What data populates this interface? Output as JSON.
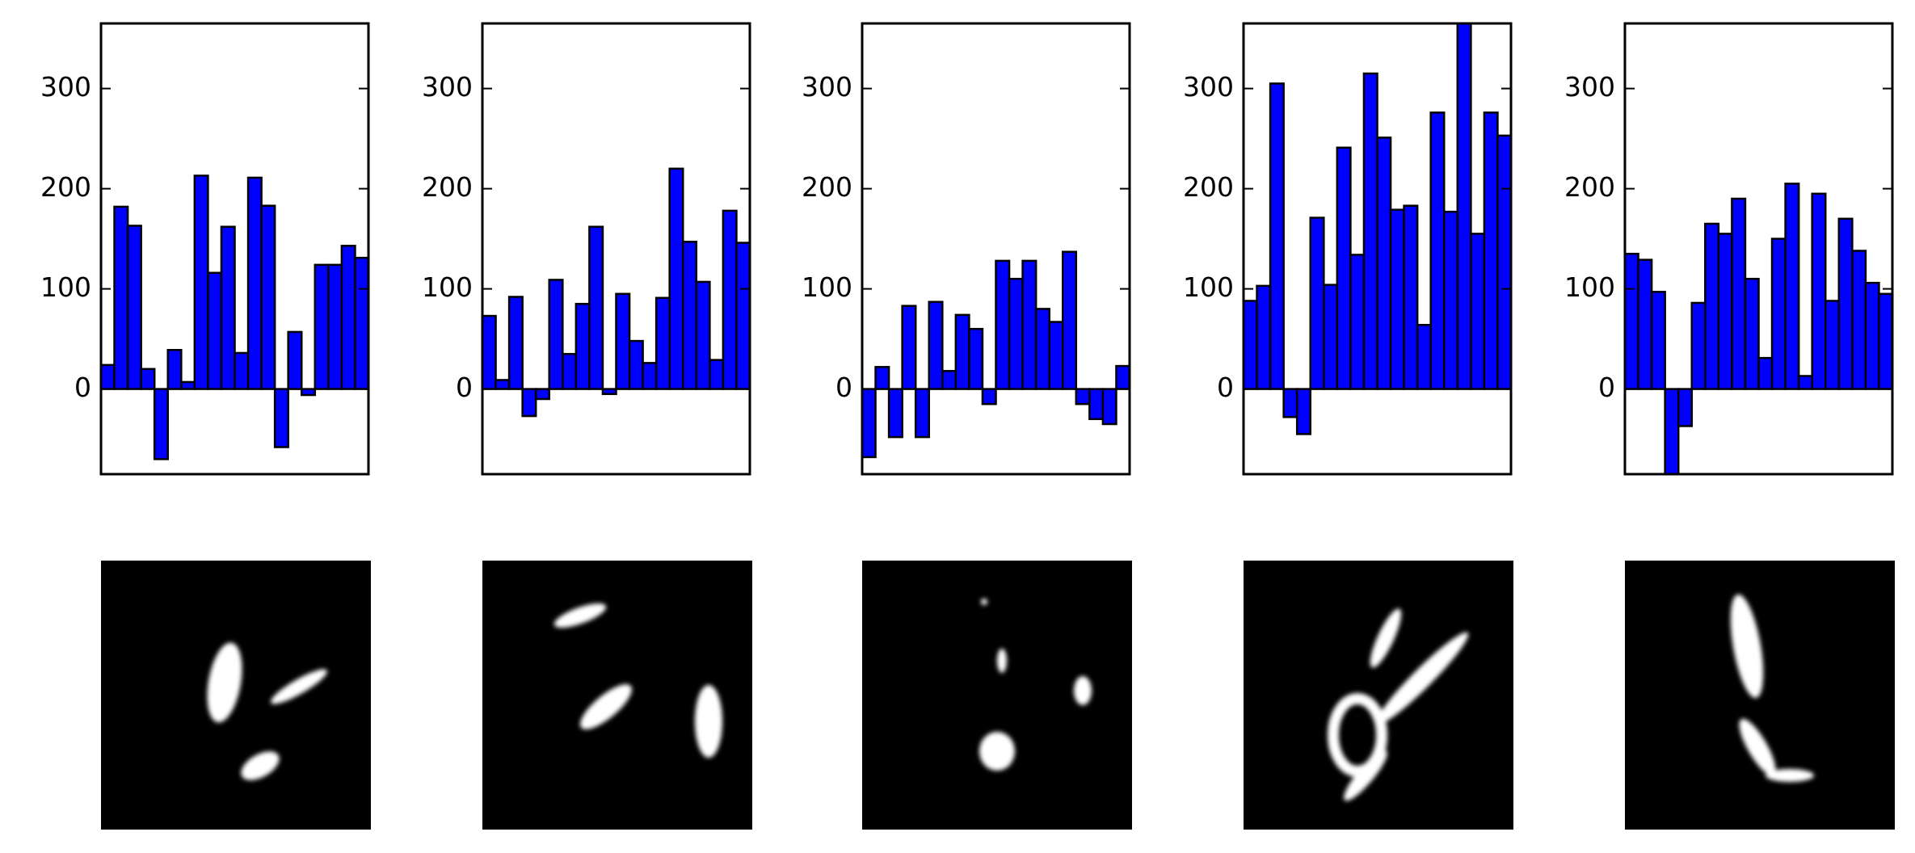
{
  "chart_data": [
    {
      "type": "bar",
      "color": "#0000ff",
      "ylim": [
        -85,
        365
      ],
      "yticks": [
        0,
        100,
        200,
        300
      ],
      "values": [
        24,
        182,
        163,
        20,
        -70,
        39,
        7,
        213,
        116,
        162,
        36,
        211,
        183,
        -58,
        57,
        -6,
        124,
        124,
        143,
        131
      ]
    },
    {
      "type": "bar",
      "color": "#0000ff",
      "ylim": [
        -85,
        365
      ],
      "yticks": [
        0,
        100,
        200,
        300
      ],
      "values": [
        73,
        9,
        92,
        -27,
        -10,
        109,
        35,
        85,
        162,
        -5,
        95,
        48,
        26,
        91,
        220,
        147,
        107,
        29,
        178,
        146
      ]
    },
    {
      "type": "bar",
      "color": "#0000ff",
      "ylim": [
        -85,
        365
      ],
      "yticks": [
        0,
        100,
        200,
        300
      ],
      "values": [
        -68,
        22,
        -48,
        83,
        -48,
        87,
        18,
        74,
        60,
        -15,
        128,
        110,
        128,
        80,
        67,
        137,
        -15,
        -30,
        -35,
        23
      ]
    },
    {
      "type": "bar",
      "color": "#0000ff",
      "ylim": [
        -85,
        365
      ],
      "yticks": [
        0,
        100,
        200,
        300
      ],
      "values": [
        88,
        103,
        305,
        -28,
        -45,
        171,
        104,
        241,
        134,
        315,
        251,
        179,
        183,
        64,
        276,
        177,
        365,
        155,
        276,
        253
      ]
    },
    {
      "type": "bar",
      "color": "#0000ff",
      "ylim": [
        -85,
        365
      ],
      "yticks": [
        0,
        100,
        200,
        300
      ],
      "values": [
        135,
        129,
        97,
        -85,
        -37,
        86,
        165,
        155,
        190,
        110,
        31,
        150,
        205,
        13,
        195,
        88,
        170,
        138,
        106,
        95
      ]
    }
  ]
}
